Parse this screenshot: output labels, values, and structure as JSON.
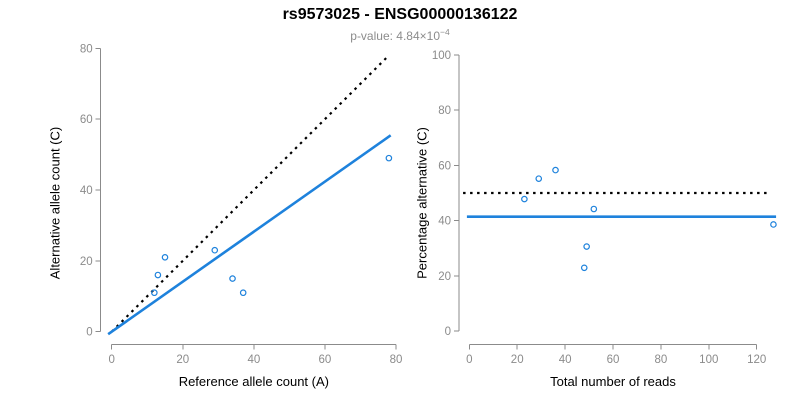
{
  "header": {
    "title": "rs9573025 - ENSG00000136122",
    "pvalue_prefix": "p-value: 4.84×10",
    "pvalue_exponent": "−4"
  },
  "colors": {
    "point_line_blue": "#1E82DC",
    "axis_gray": "#8B8B8B",
    "title_black": "#000000",
    "subtitle_gray": "#8C8C8C"
  },
  "chart_data": [
    {
      "id": "allele-counts",
      "type": "scatter",
      "xlabel": "Reference allele count (A)",
      "ylabel": "Alternative allele count (C)",
      "xlim": [
        0,
        80
      ],
      "ylim": [
        0,
        80
      ],
      "xticks": [
        0,
        20,
        40,
        60,
        80
      ],
      "yticks": [
        0,
        20,
        40,
        60,
        80
      ],
      "grid": false,
      "points": [
        {
          "x": 15,
          "y": 21
        },
        {
          "x": 13,
          "y": 16
        },
        {
          "x": 12,
          "y": 11
        },
        {
          "x": 29,
          "y": 23
        },
        {
          "x": 34,
          "y": 15
        },
        {
          "x": 37,
          "y": 11
        },
        {
          "x": 78,
          "y": 49
        }
      ],
      "lines": [
        {
          "name": "identity-line",
          "slope": 1,
          "intercept": 0,
          "x_start": 0,
          "x_end": 78,
          "style": "dotted",
          "color": "#000000"
        },
        {
          "name": "fit-line",
          "slope": 0.706,
          "intercept": 0,
          "x_start": -1,
          "x_end": 78.5,
          "style": "solid",
          "color": "#1E82DC"
        }
      ]
    },
    {
      "id": "percentage-alternative",
      "type": "scatter",
      "xlabel": "Total number of reads",
      "ylabel": "Percentage alternative (C)",
      "xlim": [
        0,
        120
      ],
      "ylim": [
        0,
        100
      ],
      "xticks": [
        0,
        20,
        40,
        60,
        80,
        100,
        120
      ],
      "yticks": [
        0,
        20,
        40,
        60,
        80,
        100
      ],
      "grid": false,
      "points": [
        {
          "x": 36,
          "y": 58.3
        },
        {
          "x": 29,
          "y": 55.2
        },
        {
          "x": 23,
          "y": 47.8
        },
        {
          "x": 52,
          "y": 44.2
        },
        {
          "x": 49,
          "y": 30.6
        },
        {
          "x": 48,
          "y": 22.9
        },
        {
          "x": 127,
          "y": 38.6
        }
      ],
      "lines": [
        {
          "name": "expected-50-line",
          "orientation": "horizontal",
          "y": 50,
          "x_start": -2.6,
          "x_end": 124.3,
          "style": "dotted",
          "color": "#000000"
        },
        {
          "name": "fit-line",
          "orientation": "horizontal",
          "y": 41.4,
          "x_start": -1,
          "x_end": 128.1,
          "style": "solid",
          "color": "#1E82DC"
        }
      ]
    }
  ]
}
